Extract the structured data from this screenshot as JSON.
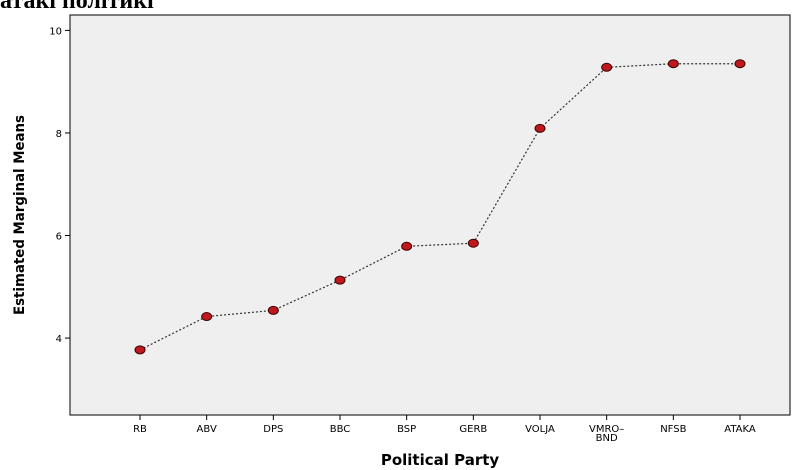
{
  "header": {
    "text": "атакі політикі"
  },
  "chart_data": {
    "type": "line",
    "title": "",
    "xlabel": "Political Party",
    "ylabel": "Estimated Marginal Means",
    "categories": [
      "RB",
      "ABV",
      "DPS",
      "BBC",
      "BSP",
      "GERB",
      "VOLJA",
      "VMRO–\nBND",
      "NFSB",
      "ATAKA"
    ],
    "values": [
      3.77,
      4.42,
      4.54,
      5.13,
      5.79,
      5.85,
      8.09,
      9.28,
      9.35,
      9.35
    ],
    "ylim": [
      2.5,
      10.3
    ],
    "yticks": [
      4,
      6,
      8,
      10
    ],
    "grid": false,
    "colors": {
      "marker": "#c0191d",
      "line": "#333333",
      "plot_background": "#efefef"
    }
  }
}
